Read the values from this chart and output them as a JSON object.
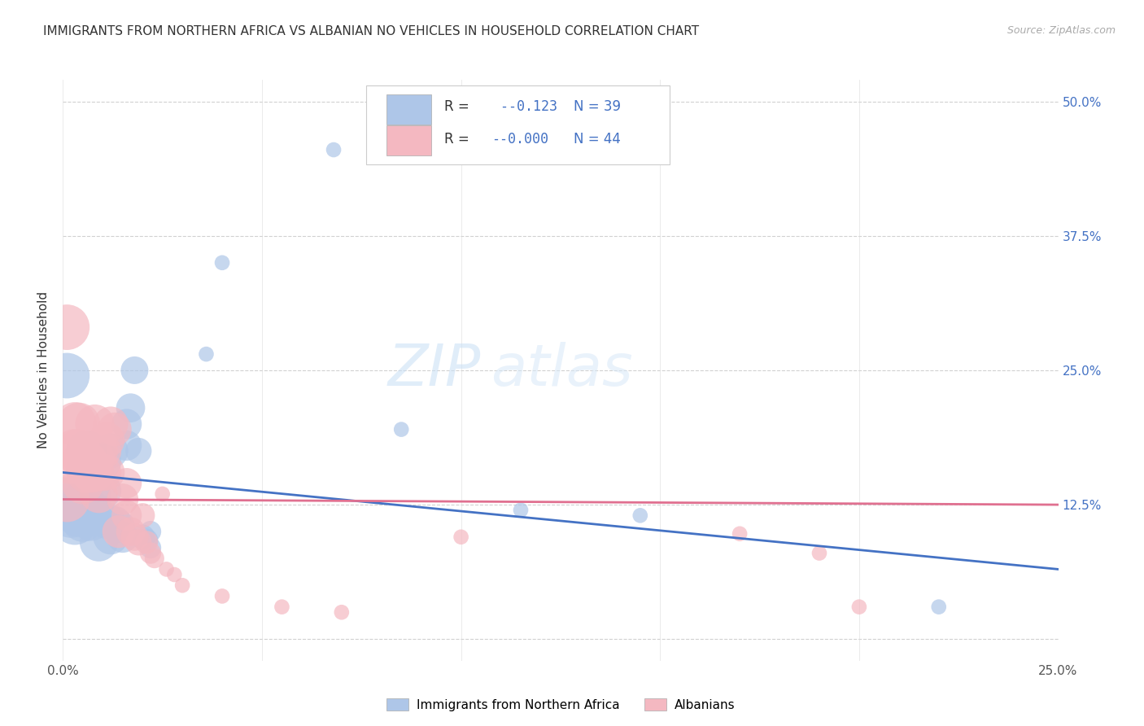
{
  "title": "IMMIGRANTS FROM NORTHERN AFRICA VS ALBANIAN NO VEHICLES IN HOUSEHOLD CORRELATION CHART",
  "source": "Source: ZipAtlas.com",
  "ylabel": "No Vehicles in Household",
  "legend_bottom": [
    "Immigrants from Northern Africa",
    "Albanians"
  ],
  "blue_scatter_x": [
    0.001,
    0.002,
    0.002,
    0.003,
    0.003,
    0.004,
    0.004,
    0.005,
    0.005,
    0.006,
    0.006,
    0.007,
    0.007,
    0.008,
    0.009,
    0.01,
    0.01,
    0.011,
    0.012,
    0.012,
    0.013,
    0.014,
    0.015,
    0.016,
    0.016,
    0.017,
    0.018,
    0.019,
    0.02,
    0.021,
    0.022,
    0.022,
    0.036,
    0.04,
    0.068,
    0.085,
    0.115,
    0.145,
    0.22
  ],
  "blue_scatter_y": [
    0.245,
    0.13,
    0.115,
    0.118,
    0.108,
    0.115,
    0.13,
    0.11,
    0.128,
    0.175,
    0.158,
    0.11,
    0.135,
    0.118,
    0.09,
    0.165,
    0.138,
    0.11,
    0.095,
    0.175,
    0.108,
    0.105,
    0.095,
    0.18,
    0.2,
    0.215,
    0.25,
    0.175,
    0.095,
    0.092,
    0.085,
    0.1,
    0.265,
    0.35,
    0.455,
    0.195,
    0.12,
    0.115,
    0.03
  ],
  "blue_scatter_s": [
    900,
    200,
    200,
    200,
    200,
    200,
    200,
    200,
    200,
    200,
    200,
    200,
    200,
    200,
    200,
    200,
    200,
    200,
    200,
    200,
    200,
    200,
    200,
    200,
    200,
    200,
    200,
    200,
    200,
    200,
    200,
    200,
    200,
    200,
    200,
    200,
    200,
    200,
    200
  ],
  "pink_scatter_x": [
    0.001,
    0.001,
    0.002,
    0.003,
    0.003,
    0.004,
    0.004,
    0.005,
    0.005,
    0.006,
    0.006,
    0.007,
    0.008,
    0.008,
    0.009,
    0.009,
    0.01,
    0.01,
    0.011,
    0.011,
    0.012,
    0.013,
    0.014,
    0.015,
    0.016,
    0.016,
    0.017,
    0.018,
    0.019,
    0.02,
    0.021,
    0.022,
    0.023,
    0.025,
    0.026,
    0.028,
    0.03,
    0.04,
    0.055,
    0.07,
    0.1,
    0.17,
    0.19,
    0.2
  ],
  "pink_scatter_y": [
    0.29,
    0.13,
    0.165,
    0.175,
    0.2,
    0.2,
    0.175,
    0.165,
    0.145,
    0.165,
    0.155,
    0.155,
    0.155,
    0.2,
    0.175,
    0.135,
    0.175,
    0.155,
    0.155,
    0.185,
    0.2,
    0.195,
    0.1,
    0.13,
    0.115,
    0.145,
    0.1,
    0.095,
    0.09,
    0.115,
    0.09,
    0.08,
    0.075,
    0.135,
    0.065,
    0.06,
    0.05,
    0.04,
    0.03,
    0.025,
    0.095,
    0.098,
    0.08,
    0.03
  ],
  "pink_scatter_s": [
    200,
    200,
    200,
    200,
    200,
    200,
    200,
    200,
    200,
    200,
    200,
    200,
    200,
    200,
    200,
    200,
    200,
    200,
    200,
    200,
    200,
    200,
    200,
    200,
    200,
    200,
    200,
    200,
    200,
    200,
    200,
    200,
    200,
    200,
    200,
    200,
    200,
    200,
    200,
    200,
    200,
    200,
    200,
    200
  ],
  "blue_line_x": [
    0.0,
    0.25
  ],
  "blue_line_y": [
    0.155,
    0.065
  ],
  "pink_line_x": [
    0.0,
    0.25
  ],
  "pink_line_y": [
    0.13,
    0.125
  ],
  "xlim": [
    0.0,
    0.25
  ],
  "ylim": [
    -0.02,
    0.52
  ],
  "background_color": "#ffffff",
  "plot_bg_color": "#ffffff",
  "grid_color": "#cccccc",
  "blue_color": "#aec6e8",
  "pink_color": "#f4b8c1",
  "blue_line_color": "#4472c4",
  "pink_line_color": "#e07090",
  "title_fontsize": 11,
  "source_fontsize": 9,
  "scatter_size": 200,
  "r_blue": "-0.123",
  "n_blue": "39",
  "r_pink": "-0.000",
  "n_pink": "44"
}
